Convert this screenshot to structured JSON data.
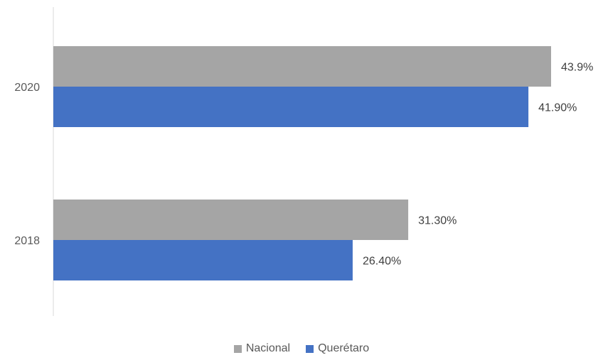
{
  "chart_data": {
    "type": "bar",
    "orientation": "horizontal",
    "categories": [
      "2020",
      "2018"
    ],
    "series": [
      {
        "name": "Nacional",
        "color": "#a5a5a5",
        "values": [
          43.9,
          31.3
        ],
        "labels": [
          "43.9%",
          "31.30%"
        ]
      },
      {
        "name": "Querétaro",
        "color": "#4472c4",
        "values": [
          41.9,
          26.4
        ],
        "labels": [
          "41.90%",
          "26.40%"
        ]
      }
    ],
    "xlim": [
      0,
      50
    ],
    "grid": false,
    "legend_position": "bottom"
  }
}
